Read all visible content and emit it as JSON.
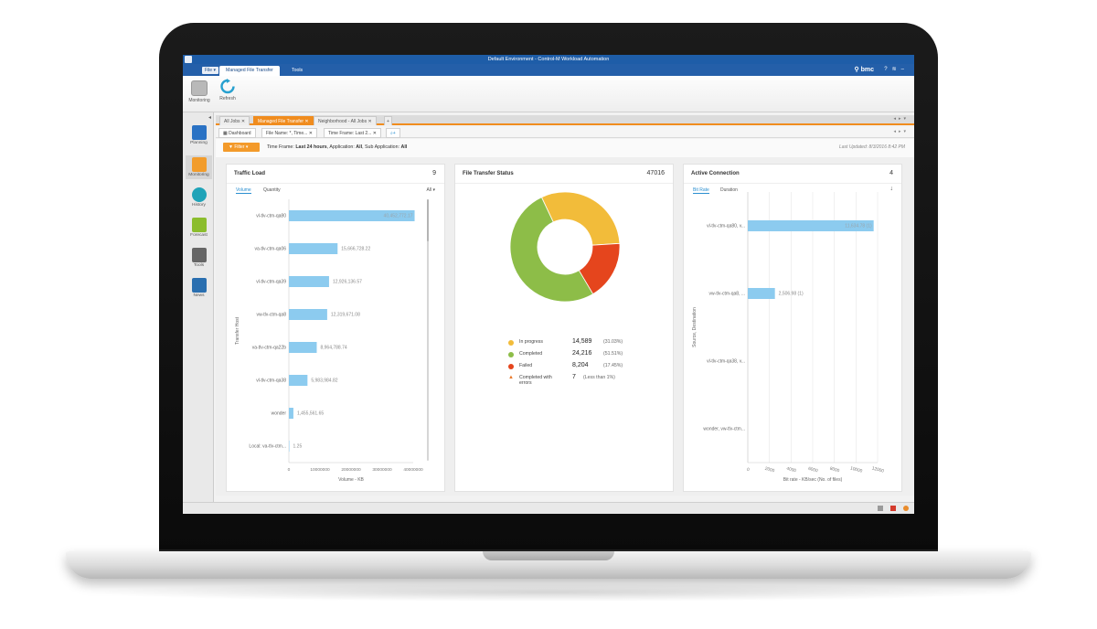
{
  "window": {
    "title": "Default Environment - Control-M Workload Automation",
    "brand": "bmc"
  },
  "menu": {
    "file_label": "File ▾",
    "tabs": [
      {
        "label": "Managed File Transfer"
      },
      {
        "label": "Tools"
      }
    ]
  },
  "ribbon": {
    "buttons": [
      {
        "label": "Monitoring",
        "icon": "monitor-icon"
      },
      {
        "label": "Refresh",
        "icon": "refresh-icon"
      }
    ]
  },
  "sidebar": {
    "items": [
      {
        "label": "Planning",
        "icon": "planning-icon",
        "color": "#2a72c4"
      },
      {
        "label": "Monitoring",
        "icon": "monitoring-icon",
        "color": "#f29c2b"
      },
      {
        "label": "History",
        "icon": "history-icon",
        "color": "#1fa3b8"
      },
      {
        "label": "Forecast",
        "icon": "forecast-icon",
        "color": "#8bbd2d"
      },
      {
        "label": "Tools",
        "icon": "tools-icon",
        "color": "#666666"
      },
      {
        "label": "News",
        "icon": "news-icon",
        "color": "#2a6fb0"
      }
    ]
  },
  "doc_tabs": [
    {
      "label": "All Jobs"
    },
    {
      "label": "Managed File Transfer"
    },
    {
      "label": "Neighborhood - All Jobs"
    }
  ],
  "sub_tabs": [
    {
      "label": "Dashboard"
    },
    {
      "label": "File Name: *, Time..."
    },
    {
      "label": "Time Frame: Last 2..."
    }
  ],
  "filter": {
    "button_label": "Filter",
    "tf_label": "Time Frame:",
    "tf_value": "Last 24 hours",
    "app_label": ", Application:",
    "app_value": "All",
    "subapp_label": ", Sub Application:",
    "subapp_value": "All",
    "last_updated": "Last Updated: 8/3/2016 8:42 PM"
  },
  "panels": {
    "traffic": {
      "title": "Traffic Load",
      "count": "9",
      "toggles": [
        "Volume",
        "Quantity"
      ],
      "selected": "Volume",
      "dropdown": "All ▾",
      "chart_data": {
        "type": "bar",
        "orientation": "horizontal",
        "categories": [
          "vl-tlv-ctm-qa80",
          "va-tlv-ctm-qa06",
          "vl-tlv-ctm-qa39",
          "vw-tlv-ctm-qa8",
          "va-tlv-ctm-qa22b",
          "vl-tlv-ctm-qa38",
          "wonder",
          "Local: va-tlv-ctm..."
        ],
        "values": [
          40452772.17,
          15666728.22,
          12926136.57,
          12319671.08,
          8964788.74,
          5983984.82,
          1455561.65,
          1.25
        ],
        "labels": [
          "40,452,772.17",
          "15,666,728.22",
          "12,926,136.57",
          "12,319,671.08",
          "8,964,788.74",
          "5,983,984.82",
          "1,455,561.65",
          "1.25"
        ],
        "xticks": [
          "0",
          "10000000",
          "20000000",
          "30000000",
          "40000000"
        ],
        "xlim": [
          0,
          40000000
        ],
        "xlabel": "Volume - KB",
        "ylabel": "Transfer Host",
        "color": "#8ccbef"
      }
    },
    "status": {
      "title": "File Transfer Status",
      "count": "47016",
      "chart_data": {
        "type": "pie",
        "style": "donut",
        "series": [
          {
            "name": "In progress",
            "value": 14589,
            "display": "14,589",
            "pct": "(31.03%)",
            "color": "#f2bc3a",
            "icon": "in-progress-dot-icon"
          },
          {
            "name": "Completed",
            "value": 24216,
            "display": "24,216",
            "pct": "(51.51%)",
            "color": "#8dbd48",
            "icon": "completed-dot-icon"
          },
          {
            "name": "Failed",
            "value": 8204,
            "display": "8,204",
            "pct": "(17.45%)",
            "color": "#e5451d",
            "icon": "failed-dot-icon"
          },
          {
            "name": "Completed with errors",
            "value": 7,
            "display": "7",
            "pct": "(Less than 1%)",
            "color": "#e9782a",
            "icon": "warning-icon"
          }
        ]
      }
    },
    "active": {
      "title": "Active Connection",
      "count": "4",
      "toggles": [
        "Bit Rate",
        "Duration"
      ],
      "selected": "Bit Rate",
      "chart_data": {
        "type": "bar",
        "orientation": "horizontal",
        "categories": [
          "vl-tlv-ctm-qa80, v...",
          "vw-tlv-ctm-qa8, ...",
          "vl-tlv-ctm-qa38, v...",
          "wonder, vw-tlv-ctm..."
        ],
        "values": [
          11634.78,
          2506.98,
          0,
          0
        ],
        "labels": [
          "11,634.78 (1)",
          "2,506.98 (1)",
          "",
          ""
        ],
        "xticks": [
          "0",
          "2000",
          "4000",
          "6000",
          "8000",
          "10000",
          "12000"
        ],
        "xlim": [
          0,
          12000
        ],
        "xlabel": "Bit rate - KB/sec (No. of files)",
        "ylabel": "Source, Destination",
        "color": "#8ccbef"
      }
    }
  }
}
